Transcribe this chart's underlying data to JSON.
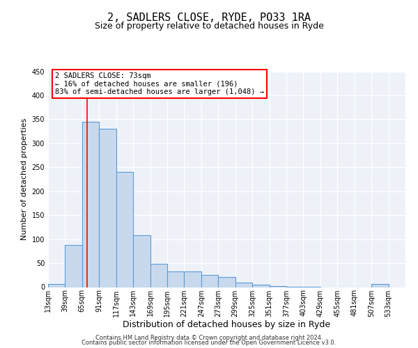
{
  "title": "2, SADLERS CLOSE, RYDE, PO33 1RA",
  "subtitle": "Size of property relative to detached houses in Ryde",
  "xlabel": "Distribution of detached houses by size in Ryde",
  "ylabel": "Number of detached properties",
  "bar_left_edges": [
    13,
    39,
    65,
    91,
    117,
    143,
    169,
    195,
    221,
    247,
    273,
    299,
    325,
    351,
    377,
    403,
    429,
    455,
    481,
    507
  ],
  "bar_heights": [
    7,
    88,
    345,
    330,
    240,
    108,
    48,
    32,
    32,
    25,
    21,
    10,
    5,
    2,
    1,
    1,
    0,
    0,
    0,
    6
  ],
  "bin_width": 26,
  "bar_color": "#c9d9ed",
  "bar_edge_color": "#5b9bd5",
  "ylim": [
    0,
    450
  ],
  "yticks": [
    0,
    50,
    100,
    150,
    200,
    250,
    300,
    350,
    400,
    450
  ],
  "xlim": [
    13,
    559
  ],
  "x_tick_labels": [
    "13sqm",
    "39sqm",
    "65sqm",
    "91sqm",
    "117sqm",
    "143sqm",
    "169sqm",
    "195sqm",
    "221sqm",
    "247sqm",
    "273sqm",
    "299sqm",
    "325sqm",
    "351sqm",
    "377sqm",
    "403sqm",
    "429sqm",
    "455sqm",
    "481sqm",
    "507sqm",
    "533sqm"
  ],
  "x_tick_positions": [
    13,
    39,
    65,
    91,
    117,
    143,
    169,
    195,
    221,
    247,
    273,
    299,
    325,
    351,
    377,
    403,
    429,
    455,
    481,
    507,
    533
  ],
  "red_line_x": 73,
  "annotation_line1": "2 SADLERS CLOSE: 73sqm",
  "annotation_line2": "← 16% of detached houses are smaller (196)",
  "annotation_line3": "83% of semi-detached houses are larger (1,048) →",
  "footer_line1": "Contains HM Land Registry data © Crown copyright and database right 2024.",
  "footer_line2": "Contains public sector information licensed under the Open Government Licence v3.0.",
  "background_color": "#eef2f8",
  "grid_color": "#ffffff",
  "fig_background": "#ffffff",
  "title_fontsize": 11,
  "subtitle_fontsize": 9,
  "ylabel_fontsize": 8,
  "xlabel_fontsize": 9,
  "tick_fontsize": 7,
  "annotation_fontsize": 7.5,
  "footer_fontsize": 6
}
